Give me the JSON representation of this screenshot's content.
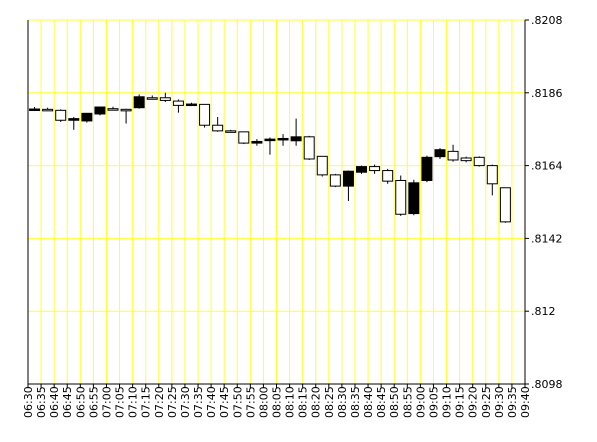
{
  "chart_data": {
    "type": "candlestick",
    "grid": true,
    "colors": {
      "grid": "#ffff33",
      "axis": "#000000",
      "up_body": "#ffffff",
      "down_body": "#000000",
      "background": "#ffffff"
    },
    "y_axis": {
      "position": "right",
      "ylim": [
        0.8098,
        0.8208
      ],
      "tick_labels": [
        ".8208",
        ".8186",
        ".8164",
        ".8142",
        ".812",
        ".8098"
      ],
      "tick_values": [
        0.8208,
        0.8186,
        0.8164,
        0.8142,
        0.812,
        0.8098
      ]
    },
    "x_axis": {
      "tick_labels": [
        "06:30",
        "06:35",
        "06:40",
        "06:45",
        "06:50",
        "06:55",
        "07:00",
        "07:05",
        "07:10",
        "07:15",
        "07:20",
        "07:25",
        "07:30",
        "07:35",
        "07:40",
        "07:45",
        "07:50",
        "07:55",
        "08:00",
        "08:05",
        "08:10",
        "08:15",
        "08:20",
        "08:25",
        "08:30",
        "08:35",
        "08:40",
        "08:45",
        "08:50",
        "08:55",
        "09:00",
        "09:05",
        "09:10",
        "09:15",
        "09:20",
        "09:25",
        "09:30",
        "09:35",
        "09:40"
      ]
    },
    "candles": [
      {
        "t": "06:30",
        "o": 0.8181,
        "h": 0.81817,
        "l": 0.81805,
        "c": 0.81811
      },
      {
        "t": "06:35",
        "o": 0.8181,
        "h": 0.81815,
        "l": 0.81805,
        "c": 0.81806
      },
      {
        "t": "06:40",
        "o": 0.81807,
        "h": 0.8181,
        "l": 0.81772,
        "c": 0.81777
      },
      {
        "t": "06:45",
        "o": 0.81777,
        "h": 0.81787,
        "l": 0.81748,
        "c": 0.81782
      },
      {
        "t": "06:50",
        "o": 0.81775,
        "h": 0.81798,
        "l": 0.8177,
        "c": 0.81798
      },
      {
        "t": "06:55",
        "o": 0.81796,
        "h": 0.81818,
        "l": 0.81792,
        "c": 0.81817
      },
      {
        "t": "07:00",
        "o": 0.81812,
        "h": 0.81818,
        "l": 0.81808,
        "c": 0.8181
      },
      {
        "t": "07:05",
        "o": 0.8181,
        "h": 0.81812,
        "l": 0.81767,
        "c": 0.81809
      },
      {
        "t": "07:10",
        "o": 0.81815,
        "h": 0.81855,
        "l": 0.81812,
        "c": 0.81848
      },
      {
        "t": "07:15",
        "o": 0.81845,
        "h": 0.81852,
        "l": 0.8184,
        "c": 0.81843
      },
      {
        "t": "07:20",
        "o": 0.81845,
        "h": 0.8186,
        "l": 0.81832,
        "c": 0.81837
      },
      {
        "t": "07:25",
        "o": 0.81835,
        "h": 0.8184,
        "l": 0.818,
        "c": 0.81822
      },
      {
        "t": "07:30",
        "o": 0.81825,
        "h": 0.8183,
        "l": 0.8182,
        "c": 0.81826
      },
      {
        "t": "07:35",
        "o": 0.81825,
        "h": 0.81825,
        "l": 0.81755,
        "c": 0.81762
      },
      {
        "t": "07:40",
        "o": 0.81762,
        "h": 0.81787,
        "l": 0.81742,
        "c": 0.81745
      },
      {
        "t": "07:45",
        "o": 0.81745,
        "h": 0.81748,
        "l": 0.8174,
        "c": 0.81742
      },
      {
        "t": "07:50",
        "o": 0.81742,
        "h": 0.81742,
        "l": 0.81705,
        "c": 0.81708
      },
      {
        "t": "07:55",
        "o": 0.81708,
        "h": 0.8172,
        "l": 0.817,
        "c": 0.81713
      },
      {
        "t": "08:00",
        "o": 0.8172,
        "h": 0.81725,
        "l": 0.81673,
        "c": 0.8172
      },
      {
        "t": "08:05",
        "o": 0.8172,
        "h": 0.81735,
        "l": 0.817,
        "c": 0.81722
      },
      {
        "t": "08:10",
        "o": 0.81715,
        "h": 0.81782,
        "l": 0.817,
        "c": 0.81727
      },
      {
        "t": "08:15",
        "o": 0.81727,
        "h": 0.8173,
        "l": 0.81657,
        "c": 0.8166
      },
      {
        "t": "08:20",
        "o": 0.81668,
        "h": 0.81668,
        "l": 0.81607,
        "c": 0.81612
      },
      {
        "t": "08:25",
        "o": 0.81612,
        "h": 0.81615,
        "l": 0.81575,
        "c": 0.81578
      },
      {
        "t": "08:30",
        "o": 0.81578,
        "h": 0.81625,
        "l": 0.81533,
        "c": 0.81623
      },
      {
        "t": "08:35",
        "o": 0.8162,
        "h": 0.8164,
        "l": 0.81615,
        "c": 0.81637
      },
      {
        "t": "08:40",
        "o": 0.81637,
        "h": 0.81643,
        "l": 0.81615,
        "c": 0.81625
      },
      {
        "t": "08:45",
        "o": 0.81625,
        "h": 0.8163,
        "l": 0.81585,
        "c": 0.81593
      },
      {
        "t": "08:50",
        "o": 0.81595,
        "h": 0.8161,
        "l": 0.81488,
        "c": 0.81493
      },
      {
        "t": "08:55",
        "o": 0.81495,
        "h": 0.81597,
        "l": 0.8149,
        "c": 0.81588
      },
      {
        "t": "09:00",
        "o": 0.81595,
        "h": 0.8167,
        "l": 0.8159,
        "c": 0.81665
      },
      {
        "t": "09:05",
        "o": 0.81667,
        "h": 0.81693,
        "l": 0.8166,
        "c": 0.81688
      },
      {
        "t": "09:10",
        "o": 0.81683,
        "h": 0.81703,
        "l": 0.81652,
        "c": 0.81657
      },
      {
        "t": "09:15",
        "o": 0.81663,
        "h": 0.81667,
        "l": 0.8165,
        "c": 0.81655
      },
      {
        "t": "09:20",
        "o": 0.81665,
        "h": 0.81668,
        "l": 0.81637,
        "c": 0.8164
      },
      {
        "t": "09:25",
        "o": 0.8164,
        "h": 0.81643,
        "l": 0.8155,
        "c": 0.81585
      },
      {
        "t": "09:30",
        "o": 0.81573,
        "h": 0.81573,
        "l": 0.81467,
        "c": 0.8147
      }
    ]
  }
}
